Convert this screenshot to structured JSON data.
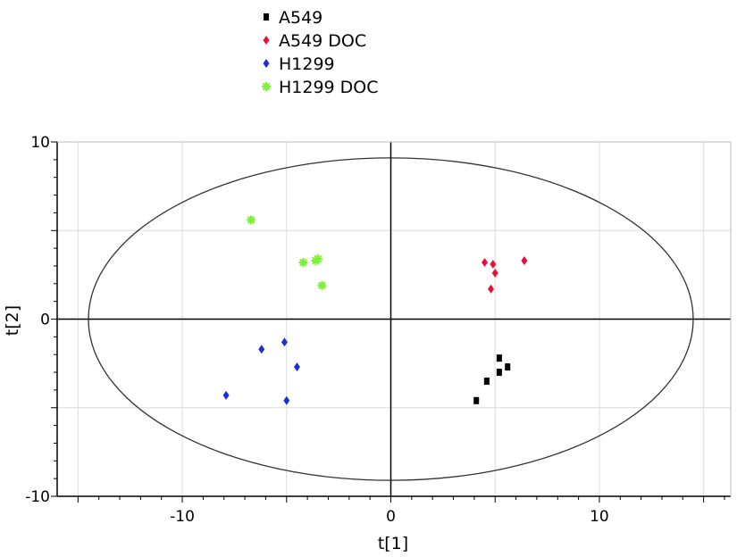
{
  "chart_data": {
    "type": "scatter",
    "xlabel": "t[1]",
    "ylabel": "t[2]",
    "xlim": [
      -16,
      16.3
    ],
    "ylim": [
      -10,
      10
    ],
    "x_ticks": [
      -10,
      0,
      10
    ],
    "y_ticks": [
      10,
      0,
      -10
    ],
    "grid": true,
    "legend_position": "top-left",
    "confidence_ellipse": {
      "center": [
        0,
        0
      ],
      "semi_axis_x": 14.5,
      "semi_axis_y": 9.1
    },
    "series": [
      {
        "name": "A549",
        "color": "#000000",
        "marker": "square",
        "points": [
          [
            4.1,
            -4.6
          ],
          [
            4.6,
            -3.5
          ],
          [
            5.2,
            -2.2
          ],
          [
            5.2,
            -3.0
          ],
          [
            5.6,
            -2.7
          ]
        ]
      },
      {
        "name": "A549 DOC",
        "color": "#e8103a",
        "marker": "diamond",
        "points": [
          [
            4.5,
            3.2
          ],
          [
            4.8,
            1.7
          ],
          [
            4.9,
            3.1
          ],
          [
            5.0,
            2.6
          ],
          [
            6.4,
            3.3
          ]
        ]
      },
      {
        "name": "H1299",
        "color": "#1f2fd8",
        "marker": "diamond",
        "points": [
          [
            -7.9,
            -4.3
          ],
          [
            -6.2,
            -1.7
          ],
          [
            -5.1,
            -1.3
          ],
          [
            -5.0,
            -4.6
          ],
          [
            -4.5,
            -2.7
          ]
        ]
      },
      {
        "name": "H1299 DOC",
        "color": "#7df03a",
        "marker": "asterisk",
        "points": [
          [
            -6.7,
            5.6
          ],
          [
            -4.2,
            3.2
          ],
          [
            -3.6,
            3.3
          ],
          [
            -3.5,
            3.4
          ],
          [
            -3.3,
            1.9
          ]
        ]
      }
    ]
  }
}
